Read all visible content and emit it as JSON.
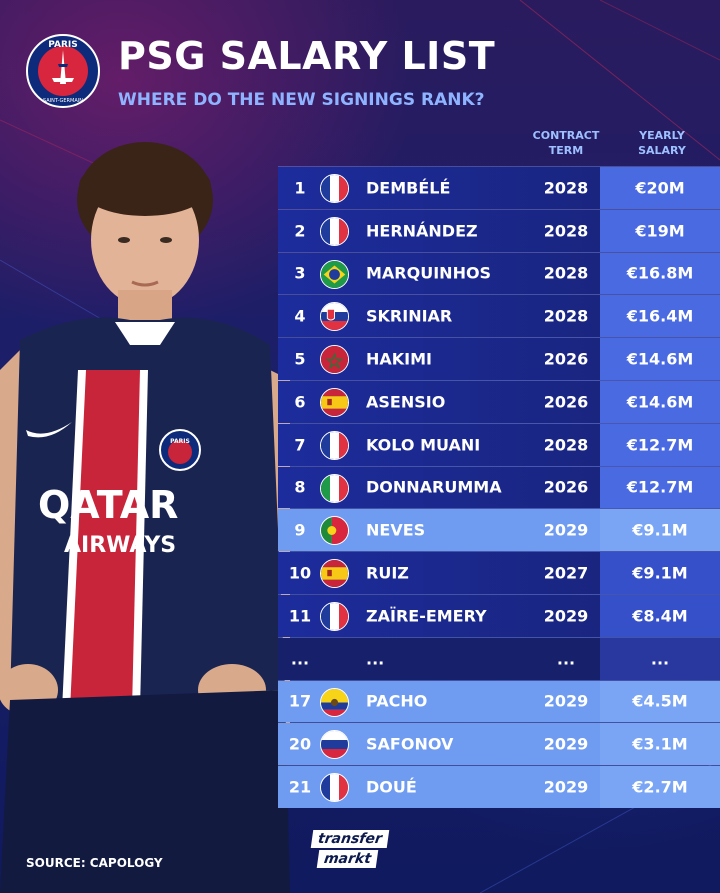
{
  "header": {
    "title": "PSG SALARY LIST",
    "subtitle": "WHERE DO THE NEW SIGNINGS RANK?",
    "logo": {
      "top_text": "PARIS",
      "bottom_text": "SAINT-GERMAIN",
      "icon": "psg-crest-icon"
    }
  },
  "columns": {
    "term_line1": "CONTRACT",
    "term_line2": "TERM",
    "salary_line1": "YEARLY",
    "salary_line2": "SALARY"
  },
  "rows": [
    {
      "rank": "1",
      "flag": "france",
      "name": "DEMBÉLÉ",
      "term": "2028",
      "salary": "€20M"
    },
    {
      "rank": "2",
      "flag": "france",
      "name": "HERNÁNDEZ",
      "term": "2028",
      "salary": "€19M"
    },
    {
      "rank": "3",
      "flag": "brazil",
      "name": "MARQUINHOS",
      "term": "2028",
      "salary": "€16.8M"
    },
    {
      "rank": "4",
      "flag": "slovakia",
      "name": "SKRINIAR",
      "term": "2028",
      "salary": "€16.4M"
    },
    {
      "rank": "5",
      "flag": "morocco",
      "name": "HAKIMI",
      "term": "2026",
      "salary": "€14.6M"
    },
    {
      "rank": "6",
      "flag": "spain",
      "name": "ASENSIO",
      "term": "2026",
      "salary": "€14.6M"
    },
    {
      "rank": "7",
      "flag": "france",
      "name": "KOLO MUANI",
      "term": "2028",
      "salary": "€12.7M"
    },
    {
      "rank": "8",
      "flag": "italy",
      "name": "DONNARUMMA",
      "term": "2026",
      "salary": "€12.7M"
    },
    {
      "rank": "9",
      "flag": "portugal",
      "name": "NEVES",
      "term": "2029",
      "salary": "€9.1M"
    },
    {
      "rank": "10",
      "flag": "spain",
      "name": "RUIZ",
      "term": "2027",
      "salary": "€9.1M"
    },
    {
      "rank": "11",
      "flag": "france",
      "name": "ZAÏRE-EMERY",
      "term": "2029",
      "salary": "€8.4M"
    },
    {
      "rank": "...",
      "flag": "",
      "name": "...",
      "term": "...",
      "salary": "..."
    },
    {
      "rank": "17",
      "flag": "ecuador",
      "name": "PACHO",
      "term": "2029",
      "salary": "€4.5M"
    },
    {
      "rank": "20",
      "flag": "russia",
      "name": "SAFONOV",
      "term": "2029",
      "salary": "€3.1M"
    },
    {
      "rank": "21",
      "flag": "france",
      "name": "DOUÉ",
      "term": "2029",
      "salary": "€2.7M"
    }
  ],
  "player": {
    "shirt_sponsor_line1": "QATAR",
    "shirt_sponsor_line2": "AIRWAYS",
    "crest_text": "PARIS"
  },
  "footer": {
    "source": "SOURCE: CAPOLOGY",
    "brand_line1": "transfer",
    "brand_line2": "markt"
  },
  "colors": {
    "navy": "#0c1140",
    "accent_blue": "#3550c8",
    "highlight_blue": "#7aa5f5",
    "psg_red": "#d7263d",
    "subtitle_blue": "#8fb4ff"
  }
}
